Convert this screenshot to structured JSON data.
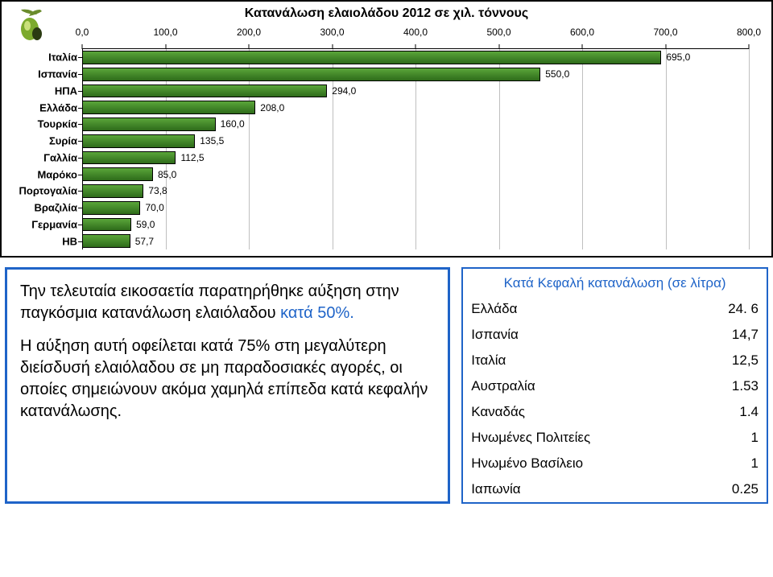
{
  "chart": {
    "type": "bar-horizontal",
    "title": "Κατανάλωση ελαιολάδου 2012 σε χιλ. τόννους",
    "title_fontsize": 16,
    "title_color": "#000000",
    "background_color": "#ffffff",
    "plot_border_top_color": "#000000",
    "grid_color": "#bfbfbf",
    "bar_gradient_top": "#5aa63a",
    "bar_gradient_bottom": "#2e6b1a",
    "bar_border_color": "#000000",
    "xlim": [
      0,
      800
    ],
    "xtick_step": 100,
    "xtick_labels": [
      "0,0",
      "100,0",
      "200,0",
      "300,0",
      "400,0",
      "500,0",
      "600,0",
      "700,0",
      "800,0"
    ],
    "tick_fontsize": 12,
    "rows": [
      {
        "label": "Ιταλία",
        "value": 695.0,
        "value_label": "695,0"
      },
      {
        "label": "Ισπανία",
        "value": 550.0,
        "value_label": "550,0"
      },
      {
        "label": "ΗΠΑ",
        "value": 294.0,
        "value_label": "294,0"
      },
      {
        "label": "Ελλάδα",
        "value": 208.0,
        "value_label": "208,0"
      },
      {
        "label": "Τουρκία",
        "value": 160.0,
        "value_label": "160,0"
      },
      {
        "label": "Συρία",
        "value": 135.5,
        "value_label": "135,5"
      },
      {
        "label": "Γαλλία",
        "value": 112.5,
        "value_label": "112,5"
      },
      {
        "label": "Μαρόκο",
        "value": 85.0,
        "value_label": "85,0"
      },
      {
        "label": "Πορτογαλία",
        "value": 73.8,
        "value_label": "73,8"
      },
      {
        "label": "Βραζιλία",
        "value": 70.0,
        "value_label": "70,0"
      },
      {
        "label": "Γερμανία",
        "value": 59.0,
        "value_label": "59,0"
      },
      {
        "label": "ΗΒ",
        "value": 57.7,
        "value_label": "57,7"
      }
    ],
    "icon_name": "olive-icon"
  },
  "text_box": {
    "border_color": "#1f64c8",
    "accent_color": "#1f64c8",
    "fontsize": 20,
    "p1_a": "Την τελευταία εικοσαετία παρατηρήθηκε αύξηση στην παγκόσμια κατανάλωση ελαιόλαδου ",
    "p1_b": "κατά 50%.",
    "p2": "Η αύξηση αυτή οφείλεται κατά 75% στη μεγαλύτερη διείσδυσή ελαιόλαδου σε μη παραδοσιακές αγορές, οι οποίες σημειώνουν ακόμα χαμηλά επίπεδα κατά κεφαλήν κατανάλωσης."
  },
  "per_capita_table": {
    "border_color": "#1f64c8",
    "title_color": "#1f64c8",
    "title": "Κατά Κεφαλή κατανάλωση (σε λίτρα)",
    "fontsize": 17,
    "rows": [
      {
        "country": "Ελλάδα",
        "value": "24. 6"
      },
      {
        "country": "Ισπανία",
        "value": "14,7"
      },
      {
        "country": "Ιταλία",
        "value": "12,5"
      },
      {
        "country": "Αυστραλία",
        "value": "1.53"
      },
      {
        "country": "Καναδάς",
        "value": "1.4"
      },
      {
        "country": "Ηνωμένες Πολιτείες",
        "value": "1"
      },
      {
        "country": "Ηνωμένο Βασίλειο",
        "value": "1"
      },
      {
        "country": "Ιαπωνία",
        "value": "0.25"
      }
    ]
  }
}
